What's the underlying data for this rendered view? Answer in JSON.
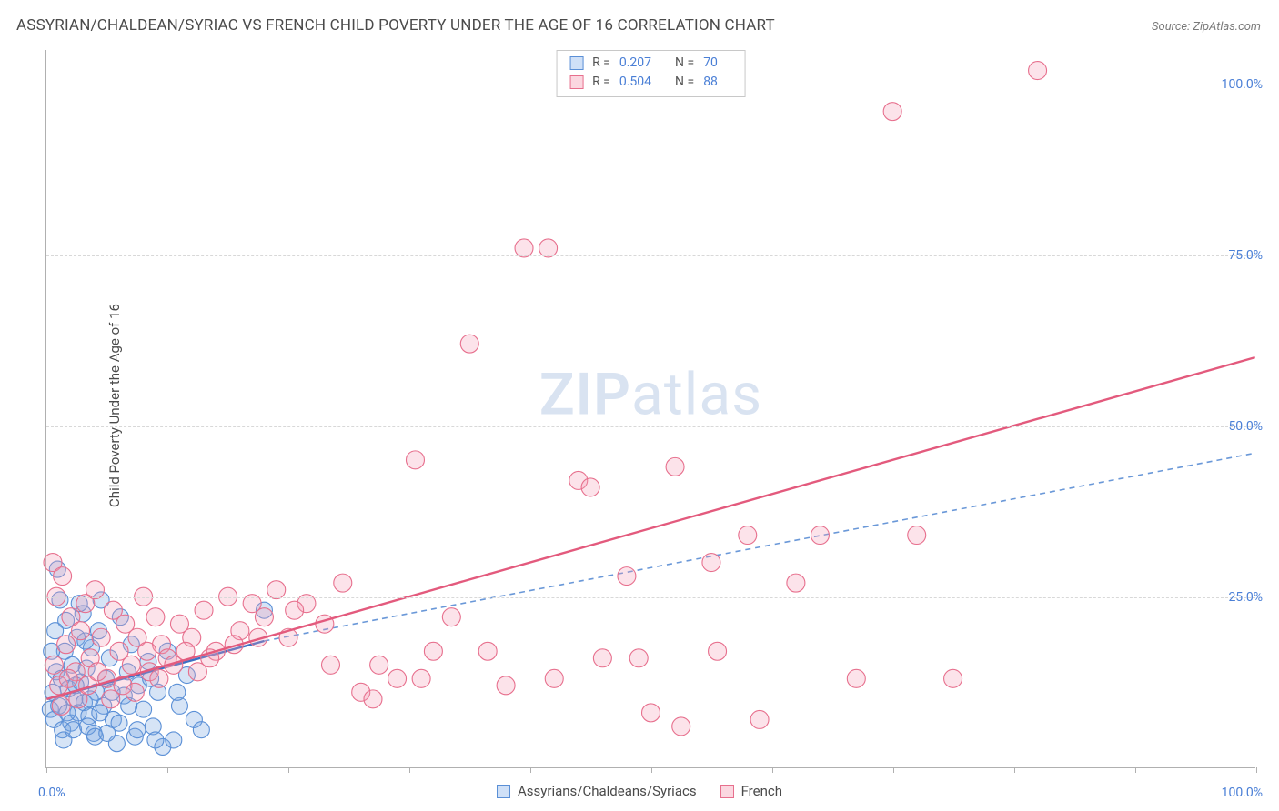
{
  "title": "ASSYRIAN/CHALDEAN/SYRIAC VS FRENCH CHILD POVERTY UNDER THE AGE OF 16 CORRELATION CHART",
  "source": "Source: ZipAtlas.com",
  "y_axis_label": "Child Poverty Under the Age of 16",
  "watermark": {
    "zip": "ZIP",
    "atlas": "atlas"
  },
  "axes": {
    "xlim": [
      0,
      100
    ],
    "ylim": [
      0,
      105
    ],
    "y_ticks": [
      {
        "value": 25,
        "label": "25.0%"
      },
      {
        "value": 50,
        "label": "50.0%"
      },
      {
        "value": 75,
        "label": "75.0%"
      },
      {
        "value": 100,
        "label": "100.0%"
      }
    ],
    "x_ticks": [
      0,
      10,
      20,
      30,
      40,
      50,
      60,
      70,
      80,
      90,
      100
    ],
    "x_origin_label": "0.0%",
    "x_max_label": "100.0%",
    "grid_color": "#d8d8d8",
    "axis_color": "#b0b0b0",
    "tick_label_color": "#4a7fd6"
  },
  "stats_box": {
    "rows": [
      {
        "color_fill": "#cfe0f7",
        "color_border": "#5a8fd6",
        "r_label": "R =",
        "r_value": "0.207",
        "n_label": "N =",
        "n_value": "70"
      },
      {
        "color_fill": "#fbd7e0",
        "color_border": "#e76f8d",
        "r_label": "R =",
        "r_value": "0.504",
        "n_label": "N =",
        "n_value": "88"
      }
    ]
  },
  "bottom_legend": [
    {
      "swatch_fill": "#cfe0f7",
      "swatch_border": "#5a8fd6",
      "label": "Assyrians/Chaldeans/Syriacs"
    },
    {
      "swatch_fill": "#fbd7e0",
      "swatch_border": "#e76f8d",
      "label": "French"
    }
  ],
  "series": [
    {
      "name": "Assyrians/Chaldeans/Syriacs",
      "color_fill": "rgba(120,165,225,0.30)",
      "color_stroke": "#5a8fd6",
      "marker_radius": 9,
      "trend": {
        "solid": {
          "x1": 0,
          "y1": 10,
          "x2": 18,
          "y2": 18.5,
          "stroke": "#3b6fc4",
          "width": 2.4
        },
        "dashed": {
          "x1": 18,
          "y1": 18.5,
          "x2": 100,
          "y2": 46,
          "stroke": "#6a98d8",
          "width": 1.6,
          "dash": "6,5"
        }
      },
      "points": [
        [
          0.3,
          8.5
        ],
        [
          0.5,
          11
        ],
        [
          0.6,
          7
        ],
        [
          0.8,
          14
        ],
        [
          1.0,
          9
        ],
        [
          1.2,
          13
        ],
        [
          1.3,
          5.5
        ],
        [
          1.5,
          17
        ],
        [
          1.6,
          21.5
        ],
        [
          1.8,
          11.5
        ],
        [
          2.0,
          6.5
        ],
        [
          2.1,
          15
        ],
        [
          2.3,
          10
        ],
        [
          2.5,
          19
        ],
        [
          2.6,
          8
        ],
        [
          2.8,
          12.5
        ],
        [
          3.0,
          22.5
        ],
        [
          3.1,
          9.5
        ],
        [
          3.3,
          14.5
        ],
        [
          3.5,
          7.5
        ],
        [
          3.7,
          17.5
        ],
        [
          3.9,
          5
        ],
        [
          4.1,
          11
        ],
        [
          4.3,
          20
        ],
        [
          4.5,
          24.5
        ],
        [
          4.7,
          9
        ],
        [
          4.9,
          13
        ],
        [
          5.2,
          16
        ],
        [
          5.5,
          7
        ],
        [
          5.8,
          3.5
        ],
        [
          6.1,
          22
        ],
        [
          6.4,
          10.5
        ],
        [
          6.7,
          14
        ],
        [
          7.0,
          18
        ],
        [
          7.3,
          4.5
        ],
        [
          7.6,
          12
        ],
        [
          8.0,
          8.5
        ],
        [
          8.4,
          15.5
        ],
        [
          8.8,
          6
        ],
        [
          9.2,
          11
        ],
        [
          9.6,
          3
        ],
        [
          10.0,
          17
        ],
        [
          10.5,
          4
        ],
        [
          11.0,
          9
        ],
        [
          11.6,
          13.5
        ],
        [
          12.2,
          7
        ],
        [
          0.9,
          29
        ],
        [
          1.4,
          4
        ],
        [
          2.2,
          5.5
        ],
        [
          3.4,
          6
        ],
        [
          4.0,
          4.5
        ],
        [
          5.0,
          5
        ],
        [
          6.0,
          6.5
        ],
        [
          7.5,
          5.5
        ],
        [
          9.0,
          4
        ],
        [
          12.8,
          5.5
        ],
        [
          1.1,
          24.5
        ],
        [
          2.7,
          24
        ],
        [
          0.4,
          17
        ],
        [
          0.7,
          20
        ],
        [
          1.7,
          8
        ],
        [
          2.4,
          12
        ],
        [
          3.6,
          10
        ],
        [
          4.4,
          8
        ],
        [
          5.4,
          11
        ],
        [
          6.8,
          9
        ],
        [
          8.6,
          13
        ],
        [
          10.8,
          11
        ],
        [
          18.0,
          23
        ],
        [
          3.2,
          18.5
        ]
      ]
    },
    {
      "name": "French",
      "color_fill": "rgba(245,155,180,0.28)",
      "color_stroke": "#e76f8d",
      "marker_radius": 10,
      "trend": {
        "solid": {
          "x1": 0,
          "y1": 10,
          "x2": 100,
          "y2": 60,
          "stroke": "#e35a7d",
          "width": 2.4
        }
      },
      "points": [
        [
          0.5,
          30
        ],
        [
          0.8,
          25
        ],
        [
          1.0,
          12
        ],
        [
          1.3,
          28
        ],
        [
          1.6,
          18
        ],
        [
          2.0,
          22
        ],
        [
          2.4,
          14
        ],
        [
          2.8,
          20
        ],
        [
          3.2,
          24
        ],
        [
          3.6,
          16
        ],
        [
          4.0,
          26
        ],
        [
          4.5,
          19
        ],
        [
          5.0,
          13
        ],
        [
          5.5,
          23
        ],
        [
          6.0,
          17
        ],
        [
          6.5,
          21
        ],
        [
          7.0,
          15
        ],
        [
          7.5,
          19
        ],
        [
          8.0,
          25
        ],
        [
          8.5,
          14
        ],
        [
          9.0,
          22
        ],
        [
          9.5,
          18
        ],
        [
          10.0,
          16
        ],
        [
          11.0,
          21
        ],
        [
          12.0,
          19
        ],
        [
          13.0,
          23
        ],
        [
          14.0,
          17
        ],
        [
          15.0,
          25
        ],
        [
          16.0,
          20
        ],
        [
          17.0,
          24
        ],
        [
          18.0,
          22
        ],
        [
          19.0,
          26
        ],
        [
          20.0,
          19
        ],
        [
          21.5,
          24
        ],
        [
          23.0,
          21
        ],
        [
          24.5,
          27
        ],
        [
          26.0,
          11
        ],
        [
          27.5,
          15
        ],
        [
          29.0,
          13
        ],
        [
          30.5,
          45
        ],
        [
          32.0,
          17
        ],
        [
          33.5,
          22
        ],
        [
          35.0,
          62
        ],
        [
          36.5,
          17
        ],
        [
          38.0,
          12
        ],
        [
          39.5,
          76
        ],
        [
          41.5,
          76
        ],
        [
          42.0,
          13
        ],
        [
          44.0,
          42
        ],
        [
          45.0,
          41
        ],
        [
          46.0,
          16
        ],
        [
          48.0,
          28
        ],
        [
          49.0,
          16
        ],
        [
          50.0,
          8
        ],
        [
          52.0,
          44
        ],
        [
          52.5,
          6
        ],
        [
          55.0,
          30
        ],
        [
          55.5,
          17
        ],
        [
          58.0,
          34
        ],
        [
          59.0,
          7
        ],
        [
          62.0,
          27
        ],
        [
          64.0,
          34
        ],
        [
          67.0,
          13
        ],
        [
          70.0,
          96
        ],
        [
          72.0,
          34
        ],
        [
          75.0,
          13
        ],
        [
          82.0,
          102
        ],
        [
          0.6,
          15
        ],
        [
          1.2,
          9
        ],
        [
          1.8,
          13
        ],
        [
          2.6,
          10
        ],
        [
          3.4,
          12
        ],
        [
          4.2,
          14
        ],
        [
          5.3,
          10
        ],
        [
          6.3,
          12
        ],
        [
          7.3,
          11
        ],
        [
          8.3,
          17
        ],
        [
          9.3,
          13
        ],
        [
          10.5,
          15
        ],
        [
          11.5,
          17
        ],
        [
          12.5,
          14
        ],
        [
          13.5,
          16
        ],
        [
          15.5,
          18
        ],
        [
          17.5,
          19
        ],
        [
          20.5,
          23
        ],
        [
          23.5,
          15
        ],
        [
          27.0,
          10
        ],
        [
          31.0,
          13
        ]
      ]
    }
  ]
}
